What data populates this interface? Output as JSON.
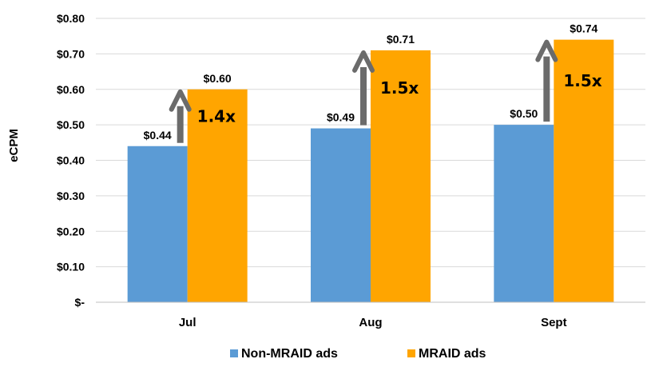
{
  "chart_data": {
    "type": "bar",
    "title": "",
    "xlabel": "",
    "ylabel": "eCPM",
    "categories": [
      "Jul",
      "Aug",
      "Sept"
    ],
    "series": [
      {
        "name": "Non-MRAID ads",
        "color": "#5b9bd5",
        "values": [
          0.44,
          0.49,
          0.5
        ],
        "labels": [
          "$0.44",
          "$0.49",
          "$0.50"
        ]
      },
      {
        "name": "MRAID ads",
        "color": "#ffa500",
        "values": [
          0.6,
          0.71,
          0.74
        ],
        "labels": [
          "$0.60",
          "$0.71",
          "$0.74"
        ]
      }
    ],
    "ylim": [
      0,
      0.8
    ],
    "yticks": [
      0,
      0.1,
      0.2,
      0.3,
      0.4,
      0.5,
      0.6,
      0.7,
      0.8
    ],
    "ytick_labels": [
      "$-",
      "$0.10",
      "$0.20",
      "$0.30",
      "$0.40",
      "$0.50",
      "$0.60",
      "$0.70",
      "$0.80"
    ],
    "grid": true,
    "legend_position": "bottom",
    "annotations": [
      {
        "category": "Jul",
        "text": "1.4x",
        "type": "arrow-up"
      },
      {
        "category": "Aug",
        "text": "1.5x",
        "type": "arrow-up"
      },
      {
        "category": "Sept",
        "text": "1.5x",
        "type": "arrow-up"
      }
    ],
    "arrow_color": "#6b6b6b",
    "grid_color": "#d9d9d9"
  }
}
